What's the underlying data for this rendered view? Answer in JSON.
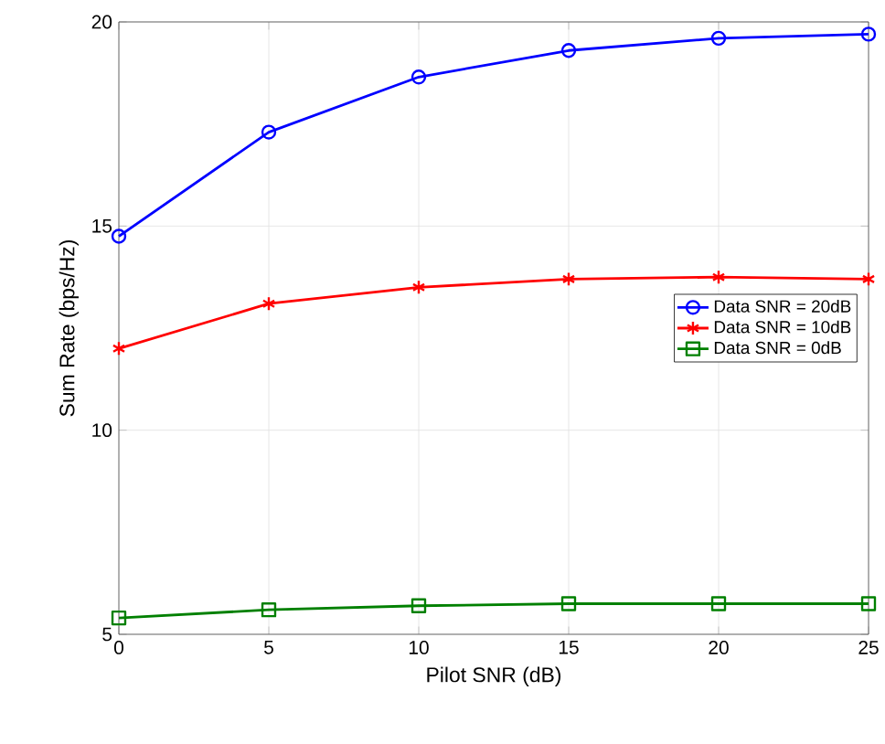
{
  "chart_data": {
    "type": "line",
    "xlabel": "Pilot SNR (dB)",
    "ylabel": "Sum Rate (bps/Hz)",
    "x": [
      0,
      5,
      10,
      15,
      20,
      25
    ],
    "xlim": [
      0,
      25
    ],
    "ylim": [
      5,
      20
    ],
    "xticks": [
      0,
      5,
      10,
      15,
      20,
      25
    ],
    "yticks": [
      5,
      10,
      15,
      20
    ],
    "grid": true,
    "legend": "right",
    "line_style": "solid",
    "series": [
      {
        "name": "Data SNR = 20dB",
        "color": "#0000ff",
        "marker": "circle",
        "values": [
          14.75,
          17.3,
          18.65,
          19.3,
          19.6,
          19.7
        ]
      },
      {
        "name": "Data SNR = 10dB",
        "color": "#ff0000",
        "marker": "cross",
        "values": [
          12.0,
          13.1,
          13.5,
          13.7,
          13.75,
          13.7
        ]
      },
      {
        "name": "Data SNR = 0dB",
        "color": "#008000",
        "marker": "square",
        "values": [
          5.4,
          5.6,
          5.7,
          5.75,
          5.75,
          5.75
        ]
      }
    ]
  }
}
